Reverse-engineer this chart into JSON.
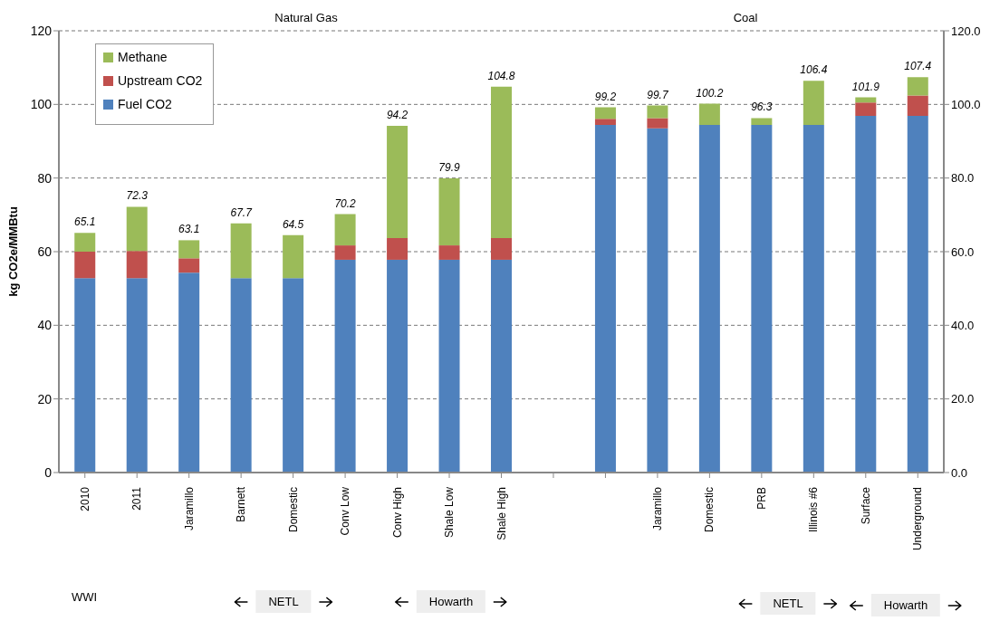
{
  "chart_data": {
    "type": "bar",
    "stacked": true,
    "categories": [
      "2010",
      "2011",
      "Jaramillo",
      "Barnett",
      "Domestic",
      "Conv Low",
      "Conv High",
      "Shale Low",
      "Shale High",
      null,
      null,
      "Jaramillo",
      "Domestic",
      "PRB",
      "Illinois #6",
      "Surface",
      "Underground"
    ],
    "series": [
      {
        "name": "Fuel CO2",
        "color": "#4f81bd",
        "values": [
          52.8,
          52.8,
          54.3,
          52.8,
          52.8,
          57.8,
          57.8,
          57.8,
          57.8,
          null,
          94.4,
          93.5,
          94.4,
          94.4,
          94.4,
          96.9,
          96.9
        ]
      },
      {
        "name": "Upstream CO2",
        "color": "#c0504d",
        "values": [
          7.2,
          7.4,
          3.9,
          null,
          null,
          3.9,
          5.9,
          3.9,
          5.9,
          null,
          1.7,
          2.8,
          null,
          null,
          null,
          3.6,
          5.5
        ]
      },
      {
        "name": "Methane",
        "color": "#9bbb59",
        "values": [
          5.1,
          12.0,
          4.9,
          14.9,
          11.7,
          8.5,
          30.5,
          18.2,
          41.1,
          null,
          3.1,
          3.4,
          5.8,
          1.9,
          12.0,
          1.4,
          5.0
        ]
      }
    ],
    "totals": [
      "65.1",
      "72.3",
      "63.1",
      "67.7",
      "64.5",
      "70.2",
      "94.2",
      "79.9",
      "104.8",
      null,
      "99.2",
      "99.7",
      "100.2",
      "96.3",
      "106.4",
      "101.9",
      "107.4"
    ],
    "ylabel": "kg CO2e/MMBtu",
    "ylim": [
      0,
      120
    ],
    "yticks": [
      0,
      20,
      40,
      60,
      80,
      100,
      120
    ],
    "y2lim": [
      0,
      120
    ],
    "y2ticks": [
      {
        "value": 0,
        "label": "0.0"
      },
      {
        "value": 20,
        "label": "20.0"
      },
      {
        "value": 40,
        "label": "40.0"
      },
      {
        "value": 60,
        "label": "60.0"
      },
      {
        "value": 80,
        "label": "80.0"
      },
      {
        "value": 100,
        "label": "100.0"
      },
      {
        "value": 120,
        "label": "120.0"
      }
    ],
    "grid": "y",
    "legend": "top left",
    "annotations": [
      "Natural Gas",
      "Coal",
      "WWI",
      "NETL",
      "Howarth",
      "NETL",
      "Howarth"
    ]
  }
}
